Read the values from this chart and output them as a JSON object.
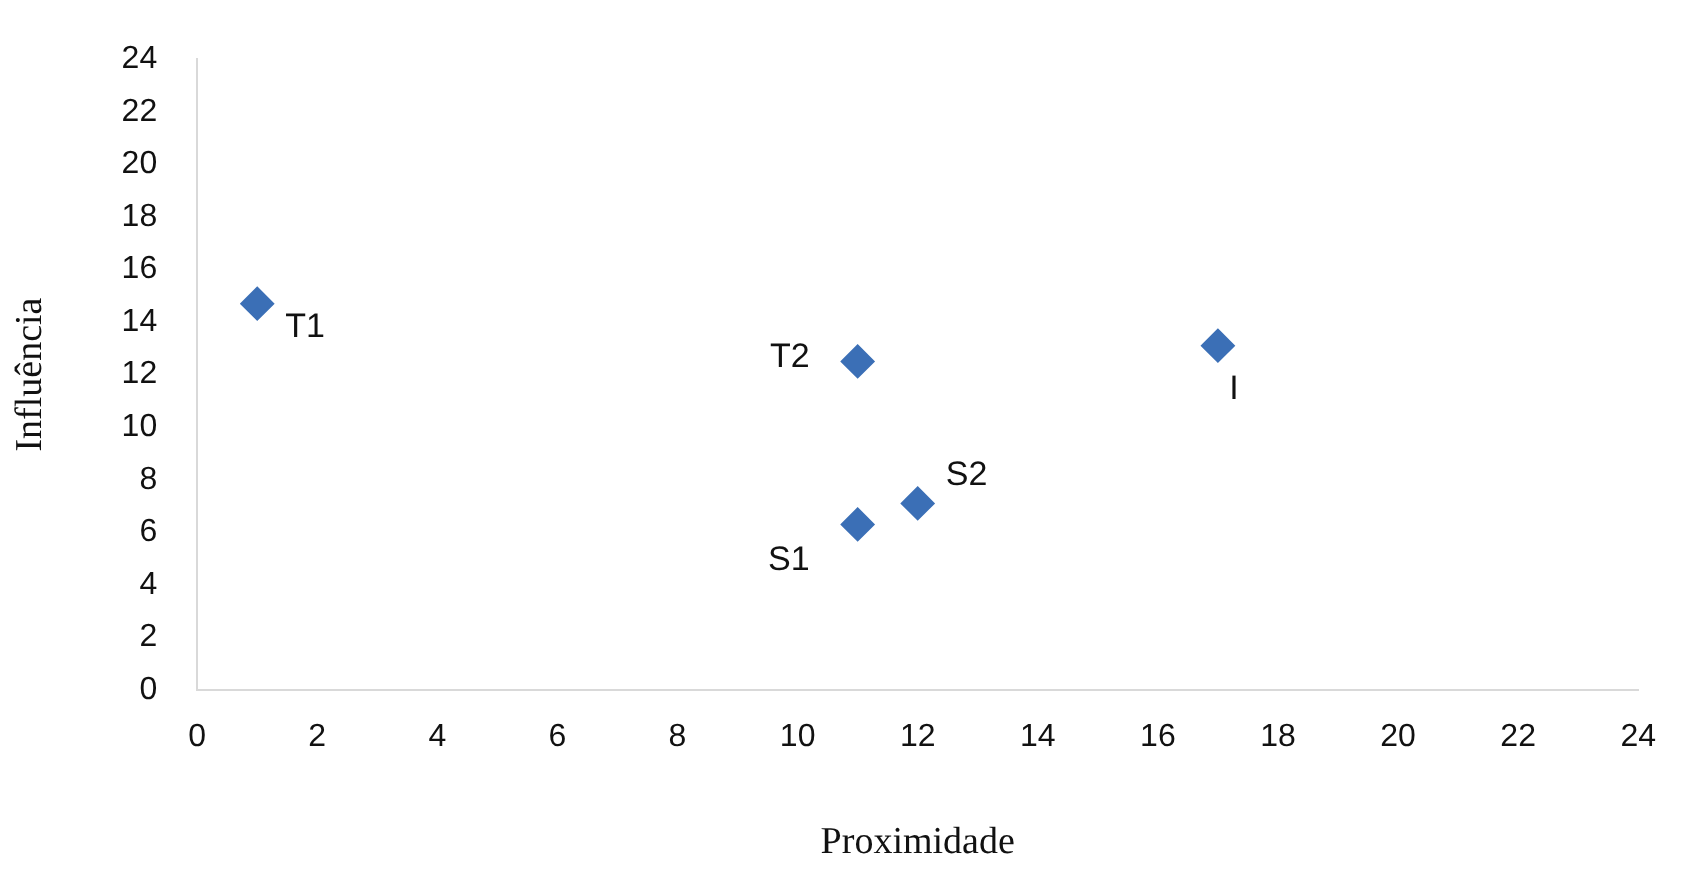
{
  "chart_data": {
    "type": "scatter",
    "xlabel": "Proximidade",
    "ylabel": "Influência",
    "x": [
      1,
      11,
      17,
      12,
      11
    ],
    "values": [
      14.7,
      12.5,
      13.1,
      7.1,
      6.3
    ],
    "color": "#3b6fb6",
    "marker": "diamond",
    "grid": false,
    "legend": false,
    "xlim": [
      0,
      24
    ],
    "xticks": [
      0,
      2,
      4,
      6,
      8,
      10,
      12,
      14,
      16,
      18,
      20,
      22,
      24
    ],
    "ylim": [
      0,
      24
    ],
    "yticks": [
      0,
      2,
      4,
      6,
      8,
      10,
      12,
      14,
      16,
      18,
      20,
      22,
      24
    ],
    "annotations": [
      {
        "text": "T1",
        "x": 1,
        "y": 14.7
      },
      {
        "text": "T2",
        "x": 11,
        "y": 12.5
      },
      {
        "text": "I",
        "x": 17,
        "y": 13.1
      },
      {
        "text": "S2",
        "x": 12,
        "y": 7.1
      },
      {
        "text": "S1",
        "x": 11,
        "y": 6.3
      }
    ]
  }
}
